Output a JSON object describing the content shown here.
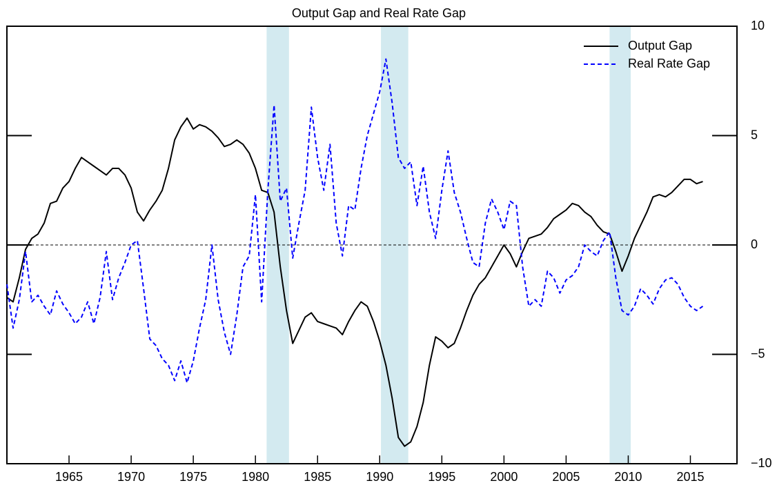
{
  "chart_data": {
    "type": "line",
    "title": "Output Gap and Real Rate Gap",
    "x": [
      1960,
      1960.5,
      1961,
      1961.5,
      1962,
      1962.5,
      1963,
      1963.5,
      1964,
      1964.5,
      1965,
      1965.5,
      1966,
      1966.5,
      1967,
      1967.5,
      1968,
      1968.5,
      1969,
      1969.5,
      1970,
      1970.5,
      1971,
      1971.5,
      1972,
      1972.5,
      1973,
      1973.5,
      1974,
      1974.5,
      1975,
      1975.5,
      1976,
      1976.5,
      1977,
      1977.5,
      1978,
      1978.5,
      1979,
      1979.5,
      1980,
      1980.5,
      1981,
      1981.5,
      1982,
      1982.5,
      1983,
      1983.5,
      1984,
      1984.5,
      1985,
      1985.5,
      1986,
      1986.5,
      1987,
      1987.5,
      1988,
      1988.5,
      1989,
      1989.5,
      1990,
      1990.5,
      1991,
      1991.5,
      1992,
      1992.5,
      1993,
      1993.5,
      1994,
      1994.5,
      1995,
      1995.5,
      1996,
      1996.5,
      1997,
      1997.5,
      1998,
      1998.5,
      1999,
      1999.5,
      2000,
      2000.5,
      2001,
      2001.5,
      2002,
      2002.5,
      2003,
      2003.5,
      2004,
      2004.5,
      2005,
      2005.5,
      2006,
      2006.5,
      2007,
      2007.5,
      2008,
      2008.5,
      2009,
      2009.5,
      2010,
      2010.5,
      2011,
      2011.5,
      2012,
      2012.5,
      2013,
      2013.5,
      2014,
      2014.5,
      2015,
      2015.5,
      2016
    ],
    "series": [
      {
        "name": "Output Gap",
        "color": "#000000",
        "dash": "solid",
        "values": [
          -2.4,
          -2.6,
          -1.5,
          -0.2,
          0.3,
          0.5,
          1.0,
          1.9,
          2.0,
          2.6,
          2.9,
          3.5,
          4.0,
          3.8,
          3.6,
          3.4,
          3.2,
          3.5,
          3.5,
          3.2,
          2.6,
          1.5,
          1.1,
          1.6,
          2.0,
          2.5,
          3.5,
          4.8,
          5.4,
          5.8,
          5.3,
          5.5,
          5.4,
          5.2,
          4.9,
          4.5,
          4.6,
          4.8,
          4.6,
          4.2,
          3.5,
          2.5,
          2.4,
          1.5,
          -1.0,
          -3.0,
          -4.5,
          -3.9,
          -3.3,
          -3.1,
          -3.5,
          -3.6,
          -3.7,
          -3.8,
          -4.1,
          -3.5,
          -3.0,
          -2.6,
          -2.8,
          -3.5,
          -4.4,
          -5.5,
          -7.0,
          -8.8,
          -9.2,
          -9.0,
          -8.3,
          -7.2,
          -5.5,
          -4.2,
          -4.4,
          -4.7,
          -4.5,
          -3.8,
          -3.0,
          -2.3,
          -1.8,
          -1.5,
          -1.0,
          -0.5,
          0.0,
          -0.4,
          -1.0,
          -0.3,
          0.3,
          0.4,
          0.5,
          0.8,
          1.2,
          1.4,
          1.6,
          1.9,
          1.8,
          1.5,
          1.3,
          0.9,
          0.6,
          0.5,
          -0.3,
          -1.2,
          -0.5,
          0.3,
          0.9,
          1.5,
          2.2,
          2.3,
          2.2,
          2.4,
          2.7,
          3.0,
          3.0,
          2.8,
          2.9
        ]
      },
      {
        "name": "Real Rate Gap",
        "color": "#0000ff",
        "dash": "dashed",
        "values": [
          -1.8,
          -3.8,
          -2.5,
          -0.3,
          -2.6,
          -2.3,
          -2.8,
          -3.2,
          -2.1,
          -2.7,
          -3.1,
          -3.6,
          -3.3,
          -2.6,
          -3.6,
          -2.4,
          -0.3,
          -2.5,
          -1.5,
          -0.8,
          0.0,
          0.2,
          -2.0,
          -4.3,
          -4.6,
          -5.2,
          -5.5,
          -6.2,
          -5.3,
          -6.3,
          -5.3,
          -3.8,
          -2.5,
          0.0,
          -2.5,
          -4.0,
          -5.0,
          -3.2,
          -1.0,
          -0.5,
          2.3,
          -2.6,
          2.5,
          6.4,
          2.0,
          2.6,
          -0.6,
          1.0,
          2.5,
          6.3,
          4.0,
          2.5,
          4.6,
          1.0,
          -0.5,
          1.8,
          1.6,
          3.5,
          5.0,
          6.0,
          7.0,
          8.5,
          6.5,
          4.0,
          3.5,
          3.8,
          1.8,
          3.6,
          1.5,
          0.3,
          2.5,
          4.3,
          2.4,
          1.5,
          0.3,
          -0.8,
          -1.0,
          1.0,
          2.1,
          1.5,
          0.7,
          2.0,
          1.8,
          -1.0,
          -2.8,
          -2.5,
          -2.8,
          -1.2,
          -1.5,
          -2.2,
          -1.6,
          -1.4,
          -1.0,
          0.0,
          -0.3,
          -0.5,
          0.2,
          0.6,
          -1.5,
          -3.0,
          -3.2,
          -2.8,
          -2.0,
          -2.3,
          -2.7,
          -2.0,
          -1.6,
          -1.5,
          -1.8,
          -2.4,
          -2.8,
          -3.0,
          -2.8
        ]
      }
    ],
    "shaded_periods": [
      [
        1980.9,
        1982.7
      ],
      [
        1990.1,
        1992.3
      ],
      [
        2008.5,
        2010.2
      ]
    ],
    "shade_color": "#d3eaf0",
    "reference_line": 0,
    "xlim": [
      1960,
      2018.75
    ],
    "xticks": [
      1965,
      1970,
      1975,
      1980,
      1985,
      1990,
      1995,
      2000,
      2005,
      2010,
      2015
    ],
    "ylim": [
      -10,
      10
    ],
    "yticks": [
      {
        "value": -10,
        "label": "−10"
      },
      {
        "value": -5,
        "label": "−5"
      },
      0,
      5,
      10
    ],
    "y_axis_side": "right",
    "legend": "upper right"
  }
}
